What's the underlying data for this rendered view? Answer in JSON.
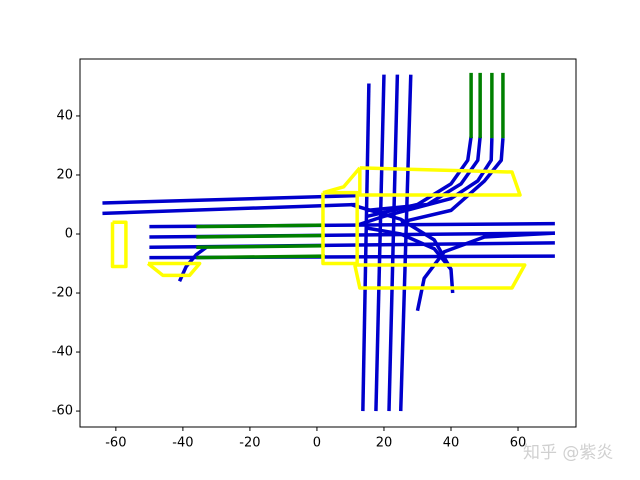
{
  "chart_data": {
    "type": "line",
    "xlim": [
      -70.7,
      77.3
    ],
    "ylim": [
      -65.4,
      59.3
    ],
    "xticks": [
      -60,
      -40,
      -20,
      0,
      20,
      40,
      60
    ],
    "yticks": [
      -60,
      -40,
      -20,
      0,
      20,
      40
    ],
    "grid": false,
    "line_width": 3.5,
    "watermark": "知乎 @紫炎",
    "series": [
      {
        "color": "#0000cc",
        "x": [
          -64,
          12
        ],
        "values": [
          10.5,
          13
        ]
      },
      {
        "color": "#0000cc",
        "x": [
          -64,
          12
        ],
        "values": [
          7,
          10
        ]
      },
      {
        "color": "#0000cc",
        "x": [
          -50,
          71
        ],
        "values": [
          2.5,
          3.5
        ]
      },
      {
        "color": "#0000cc",
        "x": [
          -50,
          71
        ],
        "values": [
          -1,
          0.3
        ]
      },
      {
        "color": "#0000cc",
        "x": [
          -50,
          71
        ],
        "values": [
          -4.5,
          -3
        ]
      },
      {
        "color": "#0000cc",
        "x": [
          -50,
          71
        ],
        "values": [
          -8,
          -7.5
        ]
      },
      {
        "color": "#0000cc",
        "x": [
          13.7,
          15.5
        ],
        "values": [
          -60,
          51
        ]
      },
      {
        "color": "#0000cc",
        "x": [
          17.6,
          20
        ],
        "values": [
          -60,
          54
        ]
      },
      {
        "color": "#0000cc",
        "x": [
          21.5,
          24
        ],
        "values": [
          -60,
          54
        ]
      },
      {
        "color": "#0000cc",
        "x": [
          25,
          28
        ],
        "values": [
          -60,
          54
        ]
      },
      {
        "color": "#0000cc",
        "x": [
          46,
          45,
          40,
          30,
          15
        ],
        "values": [
          33,
          25,
          17,
          10,
          6
        ]
      },
      {
        "color": "#0000cc",
        "x": [
          48.7,
          48,
          43,
          33,
          15
        ],
        "values": [
          33,
          25,
          17,
          10,
          8
        ]
      },
      {
        "color": "#0000cc",
        "x": [
          52.2,
          52,
          48,
          40,
          20,
          12
        ],
        "values": [
          32.5,
          25,
          18,
          12,
          6,
          3
        ]
      },
      {
        "color": "#0000cc",
        "x": [
          55.5,
          55,
          50,
          40,
          25
        ],
        "values": [
          32.5,
          25,
          18,
          8,
          4
        ]
      },
      {
        "color": "#0000cc",
        "x": [
          30,
          32,
          38,
          50,
          71
        ],
        "values": [
          -26,
          -15,
          -6,
          -1,
          0.3
        ]
      },
      {
        "color": "#0000cc",
        "x": [
          40.5,
          40,
          35,
          25,
          15
        ],
        "values": [
          -20,
          -12,
          -5,
          0,
          2
        ]
      },
      {
        "color": "#0000cc",
        "x": [
          10,
          25,
          35,
          40
        ],
        "values": [
          10,
          5,
          -2,
          -12
        ]
      },
      {
        "color": "#0000cc",
        "x": [
          -41,
          -39,
          -36,
          -33
        ],
        "values": [
          -16,
          -11,
          -7,
          -4.5
        ]
      },
      {
        "color": "#008000",
        "x": [
          46,
          46
        ],
        "values": [
          32.5,
          54.6
        ]
      },
      {
        "color": "#008000",
        "x": [
          48.7,
          48.7
        ],
        "values": [
          32.5,
          54.6
        ]
      },
      {
        "color": "#008000",
        "x": [
          52.2,
          52.2
        ],
        "values": [
          32.5,
          54.6
        ]
      },
      {
        "color": "#008000",
        "x": [
          55.5,
          55.5
        ],
        "values": [
          32.5,
          54.6
        ]
      },
      {
        "color": "#008000",
        "x": [
          -36,
          2.4
        ],
        "values": [
          2.5,
          3
        ]
      },
      {
        "color": "#008000",
        "x": [
          -36,
          2.4
        ],
        "values": [
          -1,
          -0.5
        ]
      },
      {
        "color": "#008000",
        "x": [
          -36,
          2.4
        ],
        "values": [
          -4.5,
          -4
        ]
      },
      {
        "color": "#008000",
        "x": [
          -36,
          2.4
        ],
        "values": [
          -8,
          -7.5
        ]
      },
      {
        "color": "#ffff00",
        "x": [
          -61,
          -57,
          -57,
          -61,
          -61
        ],
        "values": [
          4,
          4,
          -11,
          -11,
          4
        ]
      },
      {
        "color": "#ffff00",
        "x": [
          -50.4,
          -35,
          -38,
          -46,
          -50.4
        ],
        "values": [
          -10,
          -10,
          -14,
          -14,
          -10
        ]
      },
      {
        "color": "#ffff00",
        "x": [
          12.8,
          58.2,
          60.6,
          12.8,
          12.8
        ],
        "values": [
          22.4,
          21,
          13.2,
          13.2,
          22.4
        ]
      },
      {
        "color": "#ffff00",
        "x": [
          1.8,
          8,
          12.8
        ],
        "values": [
          14,
          16,
          22.4
        ]
      },
      {
        "color": "#ffff00",
        "x": [
          1.8,
          12,
          12,
          1.8,
          1.8
        ],
        "values": [
          14,
          14,
          -10,
          -10,
          14
        ]
      },
      {
        "color": "#ffff00",
        "x": [
          11.3,
          62,
          58.2,
          12.8,
          11.3
        ],
        "values": [
          -10.5,
          -10.5,
          -18.3,
          -18.3,
          -10.5
        ]
      }
    ]
  }
}
